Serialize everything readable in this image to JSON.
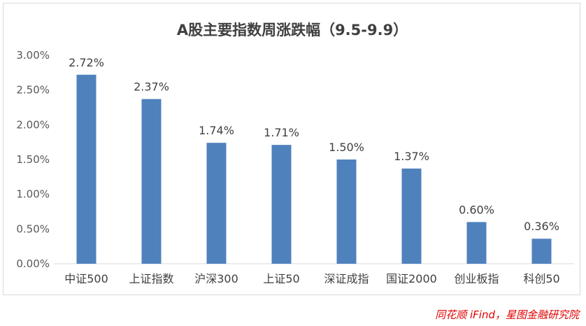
{
  "chart_data": {
    "type": "bar",
    "title": "A股主要指数周涨跌幅（9.5-9.9）",
    "categories": [
      "中证500",
      "上证指数",
      "沪深300",
      "上证50",
      "深证成指",
      "国证2000",
      "创业板指",
      "科创50"
    ],
    "values": [
      2.72,
      2.37,
      1.74,
      1.71,
      1.5,
      1.37,
      0.6,
      0.36
    ],
    "data_labels": [
      "2.72%",
      "2.37%",
      "1.74%",
      "1.71%",
      "1.50%",
      "1.37%",
      "0.60%",
      "0.36%"
    ],
    "y_ticks": [
      "0.00%",
      "0.50%",
      "1.00%",
      "1.50%",
      "2.00%",
      "2.50%",
      "3.00%"
    ],
    "ylim": [
      0,
      3.0
    ],
    "grid": false,
    "bar_color": "#4f81bd"
  },
  "source": "同花顺 iFind，星图金融研究院"
}
